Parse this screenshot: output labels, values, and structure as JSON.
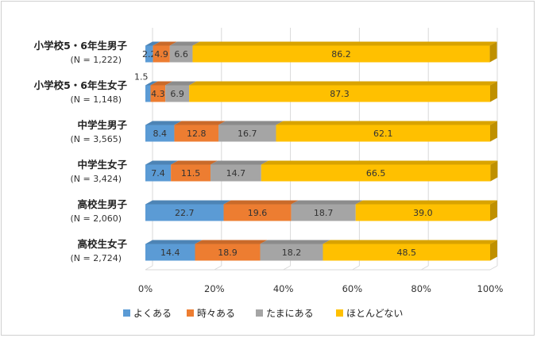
{
  "chart_data": {
    "type": "bar",
    "orientation": "horizontal",
    "stacked": true,
    "percent_stacked": true,
    "style": "3d",
    "categories": [
      {
        "label": "小学校5・6年生男子",
        "n": "(N = 1,222)"
      },
      {
        "label": "小学校5・6年生女子",
        "n": "(N = 1,148)"
      },
      {
        "label": "中学生男子",
        "n": "(N = 3,565)"
      },
      {
        "label": "中学生女子",
        "n": "(N = 3,424)"
      },
      {
        "label": "高校生男子",
        "n": "(N = 2,060)"
      },
      {
        "label": "高校生女子",
        "n": "(N = 2,724)"
      }
    ],
    "series": [
      {
        "name": "よくある",
        "color": "#5B9BD5",
        "values": [
          2.2,
          1.5,
          8.4,
          7.4,
          22.7,
          14.4
        ]
      },
      {
        "name": "時々ある",
        "color": "#ED7D31",
        "values": [
          4.9,
          4.3,
          12.8,
          11.5,
          19.6,
          18.9
        ]
      },
      {
        "name": "たまにある",
        "color": "#A5A5A5",
        "values": [
          6.6,
          6.9,
          16.7,
          14.7,
          18.7,
          18.2
        ]
      },
      {
        "name": "ほとんどない",
        "color": "#FFC000",
        "values": [
          86.2,
          87.3,
          62.1,
          66.5,
          39.0,
          48.5
        ]
      }
    ],
    "x_ticks": [
      "0%",
      "20%",
      "40%",
      "60%",
      "80%",
      "100%"
    ],
    "xlim": [
      0,
      100
    ],
    "grid": true,
    "legend_position": "bottom"
  }
}
